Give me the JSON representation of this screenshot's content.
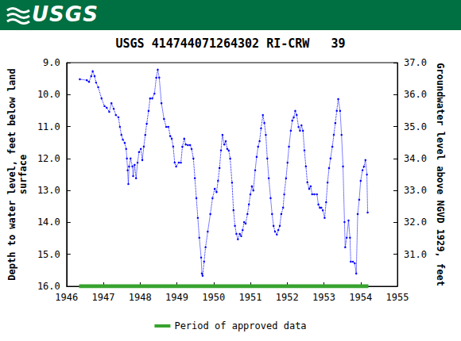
{
  "header": {
    "logo": "USGS"
  },
  "chart_data": {
    "type": "line",
    "title": "USGS 414744071264302 RI-CRW   39",
    "y_label": "Depth to water level, feet below land\nsurface",
    "y2_label": "Groundwater level above NGVD 1929, feet",
    "xlim": [
      1946,
      1955
    ],
    "xticks": [
      1946,
      1947,
      1948,
      1949,
      1950,
      1951,
      1952,
      1953,
      1954,
      1955
    ],
    "ylim": [
      9,
      16
    ],
    "yticks": [
      {
        "value": 9,
        "label": "9.0"
      },
      {
        "value": 10,
        "label": "10.0"
      },
      {
        "value": 11,
        "label": "11.0"
      },
      {
        "value": 12,
        "label": "12.0"
      },
      {
        "value": 13,
        "label": "13.0"
      },
      {
        "value": 14,
        "label": "14.0"
      },
      {
        "value": 15,
        "label": "15.0"
      },
      {
        "value": 16,
        "label": "16.0"
      }
    ],
    "y2lim": [
      30,
      37
    ],
    "y2ticks": [
      {
        "value": 31,
        "label": "31.0"
      },
      {
        "value": 32,
        "label": "32.0"
      },
      {
        "value": 33,
        "label": "33.0"
      },
      {
        "value": 34,
        "label": "34.0"
      },
      {
        "value": 35,
        "label": "35.0"
      },
      {
        "value": 36,
        "label": "36.0"
      },
      {
        "value": 37,
        "label": "37.0"
      }
    ],
    "grid": false,
    "legend": "bottom",
    "series": [
      {
        "color": "#0000ff",
        "marker": "circle",
        "line_style": "dotted",
        "x": [
          1946.36,
          1946.55,
          1946.61,
          1946.67,
          1946.71,
          1946.76,
          1946.8,
          1946.86,
          1946.95,
          1947.03,
          1947.09,
          1947.16,
          1947.22,
          1947.28,
          1947.34,
          1947.41,
          1947.45,
          1947.49,
          1947.53,
          1947.58,
          1947.62,
          1947.64,
          1947.66,
          1947.68,
          1947.7,
          1947.74,
          1947.79,
          1947.81,
          1947.85,
          1947.89,
          1947.93,
          1947.97,
          1948.02,
          1948.06,
          1948.1,
          1948.14,
          1948.18,
          1948.23,
          1948.27,
          1948.33,
          1948.39,
          1948.44,
          1948.48,
          1948.52,
          1948.58,
          1948.65,
          1948.71,
          1948.77,
          1948.82,
          1948.86,
          1948.9,
          1948.94,
          1948.98,
          1949.05,
          1949.11,
          1949.15,
          1949.2,
          1949.24,
          1949.3,
          1949.36,
          1949.4,
          1949.45,
          1949.49,
          1949.53,
          1949.57,
          1949.61,
          1949.66,
          1949.68,
          1949.7,
          1949.74,
          1949.78,
          1949.84,
          1949.91,
          1949.97,
          1950.03,
          1950.08,
          1950.12,
          1950.16,
          1950.2,
          1950.24,
          1950.29,
          1950.33,
          1950.37,
          1950.41,
          1950.45,
          1950.5,
          1950.54,
          1950.58,
          1950.62,
          1950.66,
          1950.71,
          1950.75,
          1950.79,
          1950.83,
          1950.87,
          1950.92,
          1950.96,
          1951.0,
          1951.04,
          1951.08,
          1951.13,
          1951.17,
          1951.21,
          1951.25,
          1951.29,
          1951.34,
          1951.38,
          1951.42,
          1951.46,
          1951.5,
          1951.55,
          1951.59,
          1951.63,
          1951.67,
          1951.72,
          1951.76,
          1951.8,
          1951.84,
          1951.89,
          1951.92,
          1951.97,
          1952.01,
          1952.05,
          1952.1,
          1952.14,
          1952.18,
          1952.22,
          1952.26,
          1952.31,
          1952.35,
          1952.39,
          1952.43,
          1952.47,
          1952.51,
          1952.55,
          1952.6,
          1952.64,
          1952.68,
          1952.74,
          1952.81,
          1952.85,
          1952.89,
          1952.93,
          1952.97,
          1953.02,
          1953.06,
          1953.1,
          1953.14,
          1953.18,
          1953.23,
          1953.27,
          1953.31,
          1953.35,
          1953.39,
          1953.44,
          1953.48,
          1953.52,
          1953.56,
          1953.58,
          1953.62,
          1953.67,
          1953.71,
          1953.73,
          1953.79,
          1953.84,
          1953.88,
          1953.92,
          1953.96,
          1954.0,
          1954.05,
          1954.09,
          1954.13,
          1954.17,
          1954.19
        ],
        "values": [
          9.52,
          9.55,
          9.6,
          9.42,
          9.27,
          9.42,
          9.62,
          9.77,
          10.12,
          10.36,
          10.41,
          10.54,
          10.27,
          10.44,
          10.64,
          10.71,
          11.01,
          11.26,
          11.41,
          11.51,
          11.7,
          12.0,
          12.37,
          12.8,
          12.25,
          12.0,
          12.25,
          12.55,
          12.2,
          12.62,
          12.13,
          11.8,
          11.7,
          12.05,
          11.63,
          11.26,
          10.91,
          10.51,
          10.12,
          10.12,
          9.97,
          9.47,
          9.22,
          9.47,
          10.27,
          10.76,
          11.01,
          11.01,
          11.3,
          11.38,
          11.63,
          12.13,
          12.25,
          12.13,
          12.13,
          11.63,
          11.38,
          11.56,
          11.58,
          11.58,
          11.7,
          12.0,
          12.62,
          13.24,
          13.86,
          14.48,
          15.1,
          15.6,
          15.67,
          15.23,
          14.78,
          14.29,
          13.74,
          13.24,
          12.95,
          13.05,
          12.7,
          12.3,
          11.75,
          11.26,
          11.56,
          11.46,
          11.7,
          11.75,
          12.0,
          12.75,
          13.62,
          14.11,
          14.36,
          14.53,
          14.36,
          14.43,
          14.24,
          13.99,
          14.04,
          13.74,
          13.44,
          13.12,
          12.87,
          13.0,
          12.37,
          11.95,
          11.63,
          11.46,
          11.06,
          10.64,
          10.89,
          11.26,
          12.0,
          12.62,
          13.24,
          13.74,
          14.11,
          14.29,
          14.38,
          14.24,
          14.11,
          13.74,
          13.54,
          13.12,
          12.62,
          12.13,
          11.63,
          11.13,
          10.81,
          10.71,
          10.51,
          10.64,
          11.01,
          11.13,
          10.96,
          11.13,
          11.75,
          12.25,
          12.75,
          12.95,
          12.87,
          13.12,
          13.12,
          13.12,
          13.44,
          13.54,
          13.54,
          13.62,
          13.86,
          13.37,
          12.75,
          12.3,
          12.0,
          11.63,
          11.26,
          10.89,
          10.51,
          10.14,
          10.51,
          11.26,
          12.25,
          13.99,
          14.78,
          14.48,
          13.94,
          14.48,
          15.23,
          15.23,
          15.28,
          15.6,
          13.74,
          13.29,
          12.7,
          12.37,
          12.25,
          12.05,
          12.5,
          13.69
        ]
      },
      {
        "name": "Period of approved data",
        "color": "#37a32f",
        "line_style": "solid",
        "x": [
          1946.34,
          1954.21
        ],
        "values": [
          16.0,
          16.0
        ]
      }
    ]
  }
}
